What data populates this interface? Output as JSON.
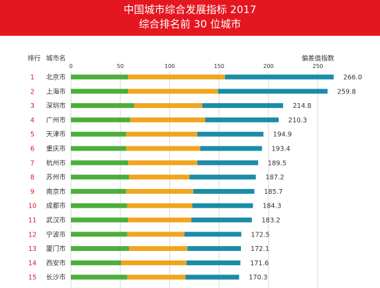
{
  "header": {
    "title_line1": "中国城市综合发展指标 2017",
    "title_line2": "综合排名前 30 位城市"
  },
  "colors": {
    "header_bg": "#e4161f",
    "rank_text": "#e4161f",
    "grid": "#d9d9d9",
    "seg1": "#4cae3c",
    "seg2": "#f0a51e",
    "seg3": "#1b8ca7"
  },
  "chart_data": {
    "type": "bar",
    "orientation": "horizontal",
    "stacked": true,
    "rank_header": "排行",
    "city_header": "城市名",
    "value_header": "偏差值指数",
    "xlim": [
      0,
      270
    ],
    "xticks": [
      0,
      50,
      100,
      150,
      200,
      250
    ],
    "grid": true,
    "rows": [
      {
        "rank": "1",
        "city": "北京市",
        "segments": [
          58,
          98,
          110
        ],
        "total": "266.0"
      },
      {
        "rank": "2",
        "city": "上海市",
        "segments": [
          58,
          91,
          110.8
        ],
        "total": "259.8"
      },
      {
        "rank": "3",
        "city": "深圳市",
        "segments": [
          64,
          69,
          81.8
        ],
        "total": "214.8"
      },
      {
        "rank": "4",
        "city": "广州市",
        "segments": [
          60,
          76,
          74.3
        ],
        "total": "210.3"
      },
      {
        "rank": "5",
        "city": "天津市",
        "segments": [
          56,
          72,
          66.9
        ],
        "total": "194.9"
      },
      {
        "rank": "6",
        "city": "重庆市",
        "segments": [
          56,
          75,
          62.4
        ],
        "total": "193.4"
      },
      {
        "rank": "7",
        "city": "杭州市",
        "segments": [
          58,
          70,
          61.5
        ],
        "total": "189.5"
      },
      {
        "rank": "8",
        "city": "苏州市",
        "segments": [
          59,
          61,
          67.2
        ],
        "total": "187.2"
      },
      {
        "rank": "9",
        "city": "南京市",
        "segments": [
          56,
          68,
          61.7
        ],
        "total": "185.7"
      },
      {
        "rank": "10",
        "city": "成都市",
        "segments": [
          57,
          66,
          61.3
        ],
        "total": "184.3"
      },
      {
        "rank": "11",
        "city": "武汉市",
        "segments": [
          58,
          64,
          61.2
        ],
        "total": "183.2"
      },
      {
        "rank": "12",
        "city": "宁波市",
        "segments": [
          57,
          58,
          57.5
        ],
        "total": "172.5"
      },
      {
        "rank": "13",
        "city": "厦门市",
        "segments": [
          59,
          59,
          54.1
        ],
        "total": "172.1"
      },
      {
        "rank": "14",
        "city": "西安市",
        "segments": [
          51,
          66,
          54.6
        ],
        "total": "171.6"
      },
      {
        "rank": "15",
        "city": "长沙市",
        "segments": [
          57,
          59,
          54.3
        ],
        "total": "170.3"
      }
    ]
  }
}
